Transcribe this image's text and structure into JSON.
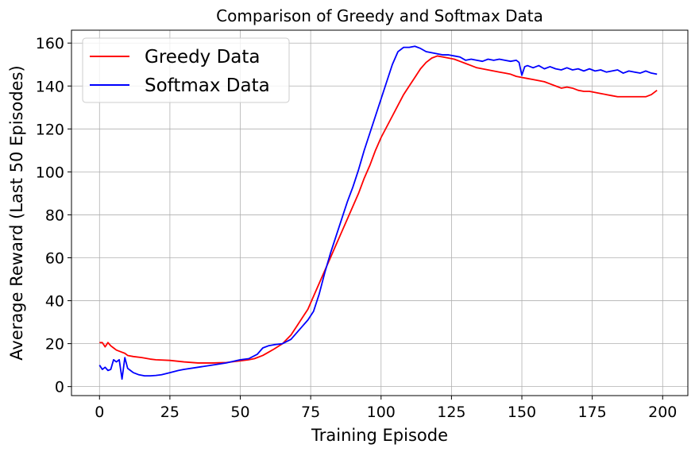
{
  "chart_data": {
    "type": "line",
    "title": "Comparison of Greedy and Softmax Data",
    "xlabel": "Training Episode",
    "ylabel": "Average Reward (Last 50 Episodes)",
    "xlim": [
      -9.95,
      208.95
    ],
    "ylim": [
      -4.2,
      166
    ],
    "xticks": [
      0,
      25,
      50,
      75,
      100,
      125,
      150,
      175,
      200
    ],
    "yticks": [
      0,
      20,
      40,
      60,
      80,
      100,
      120,
      140,
      160
    ],
    "grid": true,
    "legend_position": "top-left",
    "series": [
      {
        "name": "Greedy Data",
        "color": "#ff0000",
        "x": [
          0,
          1,
          2,
          3,
          4,
          5,
          6,
          7,
          8,
          9,
          10,
          12,
          15,
          18,
          20,
          25,
          30,
          35,
          40,
          45,
          50,
          53,
          55,
          58,
          60,
          62,
          65,
          68,
          70,
          72,
          74,
          76,
          78,
          80,
          82,
          84,
          86,
          88,
          90,
          92,
          94,
          96,
          98,
          100,
          102,
          104,
          106,
          108,
          110,
          112,
          114,
          116,
          118,
          120,
          122,
          124,
          126,
          128,
          130,
          132,
          134,
          136,
          138,
          140,
          142,
          144,
          146,
          148,
          150,
          152,
          154,
          156,
          158,
          160,
          162,
          164,
          166,
          168,
          170,
          172,
          174,
          176,
          178,
          180,
          182,
          184,
          186,
          188,
          190,
          192,
          194,
          196,
          198
        ],
        "y": [
          20.5,
          20.5,
          18.5,
          20.5,
          19,
          18,
          17,
          16.5,
          16,
          15.5,
          14.5,
          14,
          13.5,
          12.8,
          12.5,
          12.2,
          11.5,
          11,
          11,
          11.2,
          12,
          12.5,
          13,
          14.5,
          16,
          17.5,
          20,
          24,
          28,
          32,
          36,
          42,
          48,
          54,
          60,
          66,
          72,
          78,
          84,
          90,
          97,
          103,
          110,
          116,
          121,
          126,
          131,
          136,
          140,
          144,
          148,
          151,
          153,
          154,
          153.5,
          153,
          152.5,
          151.5,
          150.5,
          149.5,
          148.5,
          148,
          147.5,
          147,
          146.5,
          146,
          145.5,
          144.5,
          144,
          143.5,
          143,
          142.5,
          142,
          141,
          140,
          139,
          139.5,
          139,
          138,
          137.5,
          137.5,
          137,
          136.5,
          136,
          135.5,
          135,
          135,
          135,
          135,
          135,
          135,
          136,
          138
        ]
      },
      {
        "name": "Softmax Data",
        "color": "#0000ff",
        "x": [
          0,
          1,
          2,
          3,
          4,
          5,
          6,
          7,
          8,
          9,
          10,
          11,
          12,
          14,
          16,
          18,
          20,
          22,
          25,
          28,
          30,
          35,
          40,
          45,
          50,
          53,
          56,
          58,
          60,
          62,
          65,
          68,
          70,
          72,
          74,
          76,
          78,
          80,
          82,
          84,
          86,
          88,
          90,
          92,
          94,
          96,
          98,
          100,
          102,
          104,
          106,
          108,
          110,
          112,
          114,
          116,
          118,
          120,
          122,
          124,
          126,
          128,
          130,
          132,
          134,
          136,
          138,
          140,
          142,
          144,
          146,
          148,
          149,
          150,
          151,
          152,
          154,
          156,
          158,
          160,
          162,
          164,
          166,
          168,
          170,
          172,
          174,
          176,
          178,
          180,
          182,
          184,
          186,
          188,
          190,
          192,
          194,
          196,
          198
        ],
        "y": [
          10,
          8,
          9,
          7.5,
          8,
          12.5,
          11.5,
          12.5,
          3.5,
          13.5,
          8.5,
          7.5,
          6.5,
          5.5,
          5,
          5,
          5.2,
          5.5,
          6.5,
          7.5,
          8,
          9,
          10,
          11,
          12.5,
          13,
          15,
          18,
          19,
          19.5,
          20,
          22,
          25,
          28,
          31,
          35,
          43,
          53,
          62,
          70,
          78,
          86,
          93,
          101,
          110,
          118,
          126,
          134,
          142,
          150,
          156,
          158,
          158,
          158.5,
          157.5,
          156,
          155.5,
          155,
          154.5,
          154.5,
          154,
          153.5,
          152,
          152.5,
          152,
          151.5,
          152.5,
          152,
          152.5,
          152,
          151.5,
          152,
          151,
          145,
          149,
          149.5,
          148.5,
          149.5,
          148,
          149,
          148,
          147.5,
          148.5,
          147.5,
          148,
          147,
          148,
          147,
          147.5,
          146.5,
          147,
          147.5,
          146,
          147,
          146.5,
          146,
          147,
          146,
          145.5
        ]
      }
    ]
  }
}
